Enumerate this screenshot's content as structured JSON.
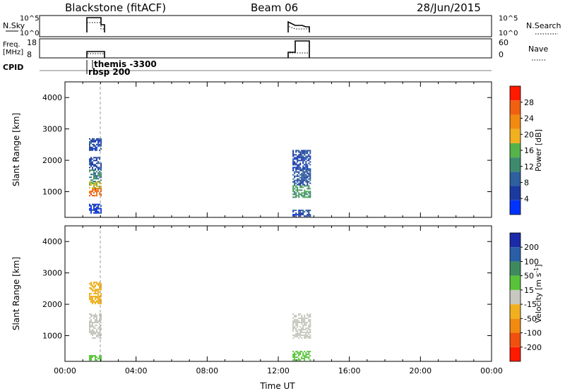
{
  "header": {
    "station": "Blackstone (fitACF)",
    "beam": "Beam 06",
    "date": "28/Jun/2015"
  },
  "top_panels": {
    "nsky_label": "N.Sky",
    "nsky_ticks": [
      "10^5",
      "10^0"
    ],
    "nsearch_label": "N.Search",
    "nsearch_ticks": [
      "10^5",
      "10^0"
    ],
    "freq_label": "Freq.",
    "freq_unit": "[MHz]",
    "freq_ticks": [
      "18",
      "8"
    ],
    "nave_label": "Nave",
    "nave_ticks": [
      "60",
      "0"
    ],
    "cpid_label": "CPID",
    "cpid_annotations": [
      "themis -3300",
      "rbsp 200"
    ]
  },
  "colors": {
    "power": [
      "#0033ff",
      "#1a3aa0",
      "#2e5f9e",
      "#3d8a6e",
      "#55b34a",
      "#f0b020",
      "#f08a10",
      "#f06010",
      "#ff1a00"
    ],
    "velocity": [
      "#1a2aa8",
      "#2a5fa8",
      "#3e8a5e",
      "#57c23a",
      "#c8c8c0",
      "#f0b020",
      "#f08a10",
      "#f05010",
      "#ff1a00"
    ]
  },
  "chart_data": [
    {
      "type": "heatmap",
      "name": "power",
      "ylabel": "Slant Range [km]",
      "xlabel": "",
      "xlim_hours": [
        0,
        24
      ],
      "ylim": [
        180,
        4500
      ],
      "yticks": [
        "1000",
        "2000",
        "3000",
        "4000"
      ],
      "colorbar_label": "Power [dB]",
      "colorbar_ticks": [
        "28",
        "24",
        "20",
        "16",
        "12",
        "8",
        "4"
      ],
      "colorbar_range": [
        0,
        32
      ],
      "patches": [
        {
          "t0": 1.35,
          "t1": 2.05,
          "r0": 300,
          "r1": 600,
          "value": 4
        },
        {
          "t0": 1.35,
          "t1": 2.05,
          "r0": 850,
          "r1": 1100,
          "value": 26
        },
        {
          "t0": 1.35,
          "t1": 2.05,
          "r0": 1100,
          "r1": 1300,
          "value": 18
        },
        {
          "t0": 1.35,
          "t1": 2.05,
          "r0": 1300,
          "r1": 1700,
          "value": 12
        },
        {
          "t0": 1.35,
          "t1": 2.05,
          "r0": 1700,
          "r1": 2100,
          "value": 6
        },
        {
          "t0": 1.35,
          "t1": 2.05,
          "r0": 2300,
          "r1": 2700,
          "value": 6
        },
        {
          "t0": 12.8,
          "t1": 13.8,
          "r0": 200,
          "r1": 400,
          "value": 6
        },
        {
          "t0": 12.8,
          "t1": 13.8,
          "r0": 800,
          "r1": 1200,
          "value": 14
        },
        {
          "t0": 12.8,
          "t1": 13.8,
          "r0": 1200,
          "r1": 1700,
          "value": 8
        },
        {
          "t0": 12.8,
          "t1": 13.8,
          "r0": 1700,
          "r1": 2300,
          "value": 6
        }
      ]
    },
    {
      "type": "heatmap",
      "name": "velocity",
      "ylabel": "Slant Range [km]",
      "xlabel": "Time UT",
      "xlim_hours": [
        0,
        24
      ],
      "xticks": [
        "00:00",
        "04:00",
        "08:00",
        "12:00",
        "16:00",
        "20:00",
        "00:00"
      ],
      "ylim": [
        180,
        4500
      ],
      "yticks": [
        "1000",
        "2000",
        "3000",
        "4000"
      ],
      "colorbar_label": "Velocity [m s^-1]",
      "colorbar_ticks": [
        "200",
        "100",
        "50",
        "15",
        "-15",
        "-50",
        "-100",
        "-200"
      ],
      "patches": [
        {
          "t0": 1.35,
          "t1": 2.05,
          "r0": 2000,
          "r1": 2700,
          "value": -30
        },
        {
          "t0": 1.35,
          "t1": 2.05,
          "r0": 900,
          "r1": 1700,
          "value": 0
        },
        {
          "t0": 1.35,
          "t1": 2.05,
          "r0": 200,
          "r1": 350,
          "value": 30
        },
        {
          "t0": 12.8,
          "t1": 13.8,
          "r0": 900,
          "r1": 1700,
          "value": 0
        },
        {
          "t0": 12.8,
          "t1": 13.8,
          "r0": 200,
          "r1": 500,
          "value": 30
        }
      ]
    }
  ]
}
